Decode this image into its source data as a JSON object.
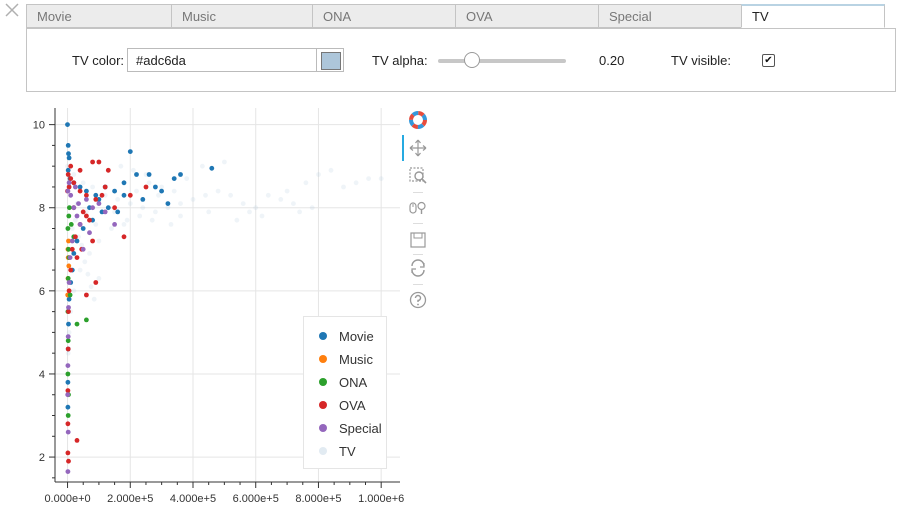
{
  "tabs": [
    {
      "label": "Movie",
      "active": false
    },
    {
      "label": "Music",
      "active": false
    },
    {
      "label": "ONA",
      "active": false
    },
    {
      "label": "OVA",
      "active": false
    },
    {
      "label": "Special",
      "active": false
    },
    {
      "label": "TV",
      "active": true
    }
  ],
  "controls": {
    "color_label": "TV color:",
    "color_value": "#adc6da",
    "alpha_label": "TV alpha:",
    "alpha_value": "0.20",
    "alpha_fraction": 0.2,
    "visible_label": "TV visible:",
    "visible_checked": true
  },
  "toolbar": [
    "bokeh-logo-icon",
    "pan-icon",
    "box-zoom-icon",
    "wheel-zoom-icon",
    "save-icon",
    "reset-icon",
    "help-icon"
  ],
  "chart_data": {
    "type": "scatter",
    "title": "",
    "xlabel": "",
    "ylabel": "",
    "xlim": [
      -40000,
      1060000
    ],
    "ylim": [
      1.4,
      10.4
    ],
    "x_ticks": [
      "0.000e+0",
      "2.000e+5",
      "4.000e+5",
      "6.000e+5",
      "8.000e+5",
      "1.000e+6"
    ],
    "x_tick_values": [
      0,
      200000,
      400000,
      600000,
      800000,
      1000000
    ],
    "y_ticks": [
      "2",
      "4",
      "6",
      "8",
      "10"
    ],
    "y_tick_values": [
      2,
      4,
      6,
      8,
      10
    ],
    "grid": true,
    "legend_position": "bottom-right",
    "series": [
      {
        "name": "Movie",
        "color": "#1f77b4",
        "alpha": 1.0,
        "points": [
          [
            0,
            10.0
          ],
          [
            2000,
            9.5
          ],
          [
            3000,
            9.3
          ],
          [
            5000,
            9.2
          ],
          [
            2000,
            8.9
          ],
          [
            8000,
            8.7
          ],
          [
            20000,
            8.6
          ],
          [
            40000,
            8.5
          ],
          [
            60000,
            8.4
          ],
          [
            90000,
            8.3
          ],
          [
            120000,
            8.5
          ],
          [
            150000,
            8.4
          ],
          [
            180000,
            8.6
          ],
          [
            200000,
            9.35
          ],
          [
            220000,
            8.8
          ],
          [
            260000,
            8.8
          ],
          [
            280000,
            8.5
          ],
          [
            300000,
            8.4
          ],
          [
            320000,
            8.1
          ],
          [
            340000,
            8.7
          ],
          [
            360000,
            8.8
          ],
          [
            460000,
            8.95
          ],
          [
            110000,
            7.9
          ],
          [
            80000,
            7.7
          ],
          [
            50000,
            7.5
          ],
          [
            30000,
            7.2
          ],
          [
            20000,
            6.9
          ],
          [
            15000,
            6.5
          ],
          [
            10000,
            6.2
          ],
          [
            5000,
            5.8
          ],
          [
            3000,
            5.2
          ],
          [
            2000,
            4.6
          ],
          [
            1000,
            3.8
          ],
          [
            1000,
            3.2
          ],
          [
            160000,
            7.9
          ],
          [
            130000,
            8.0
          ],
          [
            100000,
            8.2
          ],
          [
            70000,
            8.0
          ],
          [
            240000,
            8.2
          ],
          [
            180000,
            8.3
          ]
        ]
      },
      {
        "name": "Music",
        "color": "#ff7f0e",
        "alpha": 1.0,
        "points": [
          [
            1000,
            7.0
          ],
          [
            2000,
            6.8
          ],
          [
            1500,
            6.3
          ],
          [
            3000,
            7.2
          ],
          [
            500,
            5.9
          ],
          [
            4000,
            6.6
          ]
        ]
      },
      {
        "name": "ONA",
        "color": "#2ca02c",
        "alpha": 1.0,
        "points": [
          [
            1000,
            7.5
          ],
          [
            3000,
            7.0
          ],
          [
            5000,
            6.8
          ],
          [
            2000,
            6.3
          ],
          [
            8000,
            5.9
          ],
          [
            1000,
            5.5
          ],
          [
            4000,
            7.8
          ],
          [
            6000,
            8.0
          ],
          [
            12000,
            7.6
          ],
          [
            2000,
            4.8
          ],
          [
            1000,
            4.0
          ],
          [
            3000,
            3.5
          ],
          [
            2000,
            3.0
          ],
          [
            60000,
            5.3
          ],
          [
            30000,
            5.2
          ],
          [
            20000,
            7.3
          ]
        ]
      },
      {
        "name": "OVA",
        "color": "#d62728",
        "alpha": 1.0,
        "points": [
          [
            0,
            8.4
          ],
          [
            5000,
            8.5
          ],
          [
            10000,
            8.7
          ],
          [
            20000,
            8.6
          ],
          [
            40000,
            8.4
          ],
          [
            60000,
            8.3
          ],
          [
            80000,
            9.1
          ],
          [
            100000,
            9.1
          ],
          [
            130000,
            8.9
          ],
          [
            120000,
            8.5
          ],
          [
            90000,
            8.2
          ],
          [
            60000,
            7.8
          ],
          [
            40000,
            7.6
          ],
          [
            25000,
            7.3
          ],
          [
            15000,
            7.0
          ],
          [
            10000,
            6.5
          ],
          [
            5000,
            6.0
          ],
          [
            3000,
            5.5
          ],
          [
            2000,
            4.6
          ],
          [
            1000,
            3.6
          ],
          [
            1000,
            2.8
          ],
          [
            30000,
            2.4
          ],
          [
            1000,
            2.1
          ],
          [
            3000,
            1.9
          ],
          [
            50000,
            7.9
          ],
          [
            70000,
            7.7
          ],
          [
            80000,
            7.2
          ],
          [
            20000,
            8.0
          ],
          [
            150000,
            8.0
          ],
          [
            110000,
            8.3
          ],
          [
            40000,
            8.9
          ],
          [
            10000,
            9.0
          ],
          [
            2000,
            8.8
          ],
          [
            200000,
            8.3
          ],
          [
            250000,
            8.5
          ],
          [
            180000,
            7.3
          ],
          [
            90000,
            6.2
          ],
          [
            60000,
            5.9
          ],
          [
            30000,
            6.8
          ],
          [
            45000,
            7.0
          ]
        ]
      },
      {
        "name": "Special",
        "color": "#9467bd",
        "alpha": 1.0,
        "points": [
          [
            1000,
            8.4
          ],
          [
            5000,
            8.6
          ],
          [
            10000,
            8.3
          ],
          [
            20000,
            8.0
          ],
          [
            30000,
            7.8
          ],
          [
            40000,
            7.6
          ],
          [
            60000,
            8.2
          ],
          [
            80000,
            8.0
          ],
          [
            100000,
            8.1
          ],
          [
            15000,
            7.2
          ],
          [
            8000,
            6.8
          ],
          [
            5000,
            6.2
          ],
          [
            3000,
            5.6
          ],
          [
            2000,
            4.9
          ],
          [
            1000,
            4.2
          ],
          [
            500,
            3.5
          ],
          [
            1000,
            1.65
          ],
          [
            2000,
            2.6
          ],
          [
            50000,
            7.0
          ],
          [
            70000,
            7.4
          ],
          [
            120000,
            7.9
          ],
          [
            150000,
            7.6
          ],
          [
            25000,
            8.5
          ],
          [
            35000,
            8.1
          ]
        ]
      },
      {
        "name": "TV",
        "color": "#adc6da",
        "alpha": 0.2,
        "points": [
          [
            0,
            9.0
          ],
          [
            20000,
            8.8
          ],
          [
            50000,
            8.6
          ],
          [
            80000,
            8.5
          ],
          [
            120000,
            8.3
          ],
          [
            160000,
            8.2
          ],
          [
            200000,
            8.1
          ],
          [
            240000,
            8.0
          ],
          [
            280000,
            7.9
          ],
          [
            320000,
            8.0
          ],
          [
            360000,
            8.1
          ],
          [
            400000,
            8.2
          ],
          [
            440000,
            8.3
          ],
          [
            480000,
            8.4
          ],
          [
            520000,
            8.3
          ],
          [
            560000,
            8.1
          ],
          [
            600000,
            8.0
          ],
          [
            640000,
            8.3
          ],
          [
            680000,
            8.2
          ],
          [
            720000,
            8.1
          ],
          [
            760000,
            8.6
          ],
          [
            800000,
            8.8
          ],
          [
            840000,
            8.9
          ],
          [
            880000,
            8.5
          ],
          [
            920000,
            8.6
          ],
          [
            960000,
            8.7
          ],
          [
            1000000,
            8.7
          ],
          [
            500000,
            9.1
          ],
          [
            430000,
            9.0
          ],
          [
            380000,
            8.7
          ],
          [
            300000,
            8.5
          ],
          [
            260000,
            8.6
          ],
          [
            220000,
            8.4
          ],
          [
            180000,
            7.6
          ],
          [
            140000,
            7.5
          ],
          [
            100000,
            7.2
          ],
          [
            70000,
            6.9
          ],
          [
            40000,
            6.5
          ],
          [
            20000,
            6.0
          ],
          [
            10000,
            5.5
          ],
          [
            5000,
            5.0
          ],
          [
            2000,
            4.5
          ],
          [
            1000,
            4.0
          ],
          [
            100000,
            6.3
          ],
          [
            90000,
            7.6
          ],
          [
            60000,
            7.9
          ],
          [
            30000,
            8.1
          ],
          [
            150000,
            7.9
          ],
          [
            190000,
            7.7
          ],
          [
            230000,
            7.8
          ],
          [
            270000,
            7.7
          ],
          [
            330000,
            7.6
          ],
          [
            360000,
            7.8
          ],
          [
            450000,
            7.9
          ],
          [
            540000,
            7.7
          ],
          [
            580000,
            7.9
          ],
          [
            620000,
            7.8
          ],
          [
            700000,
            8.4
          ],
          [
            740000,
            7.9
          ],
          [
            780000,
            8.0
          ],
          [
            130000,
            8.9
          ],
          [
            170000,
            9.0
          ],
          [
            210000,
            8.9
          ],
          [
            250000,
            8.8
          ],
          [
            290000,
            8.3
          ],
          [
            340000,
            8.4
          ],
          [
            10000,
            7.0
          ],
          [
            15000,
            7.5
          ],
          [
            25000,
            7.7
          ],
          [
            35000,
            7.3
          ],
          [
            45000,
            7.1
          ],
          [
            55000,
            6.7
          ],
          [
            65000,
            6.4
          ],
          [
            75000,
            6.1
          ],
          [
            85000,
            5.8
          ]
        ]
      }
    ]
  }
}
